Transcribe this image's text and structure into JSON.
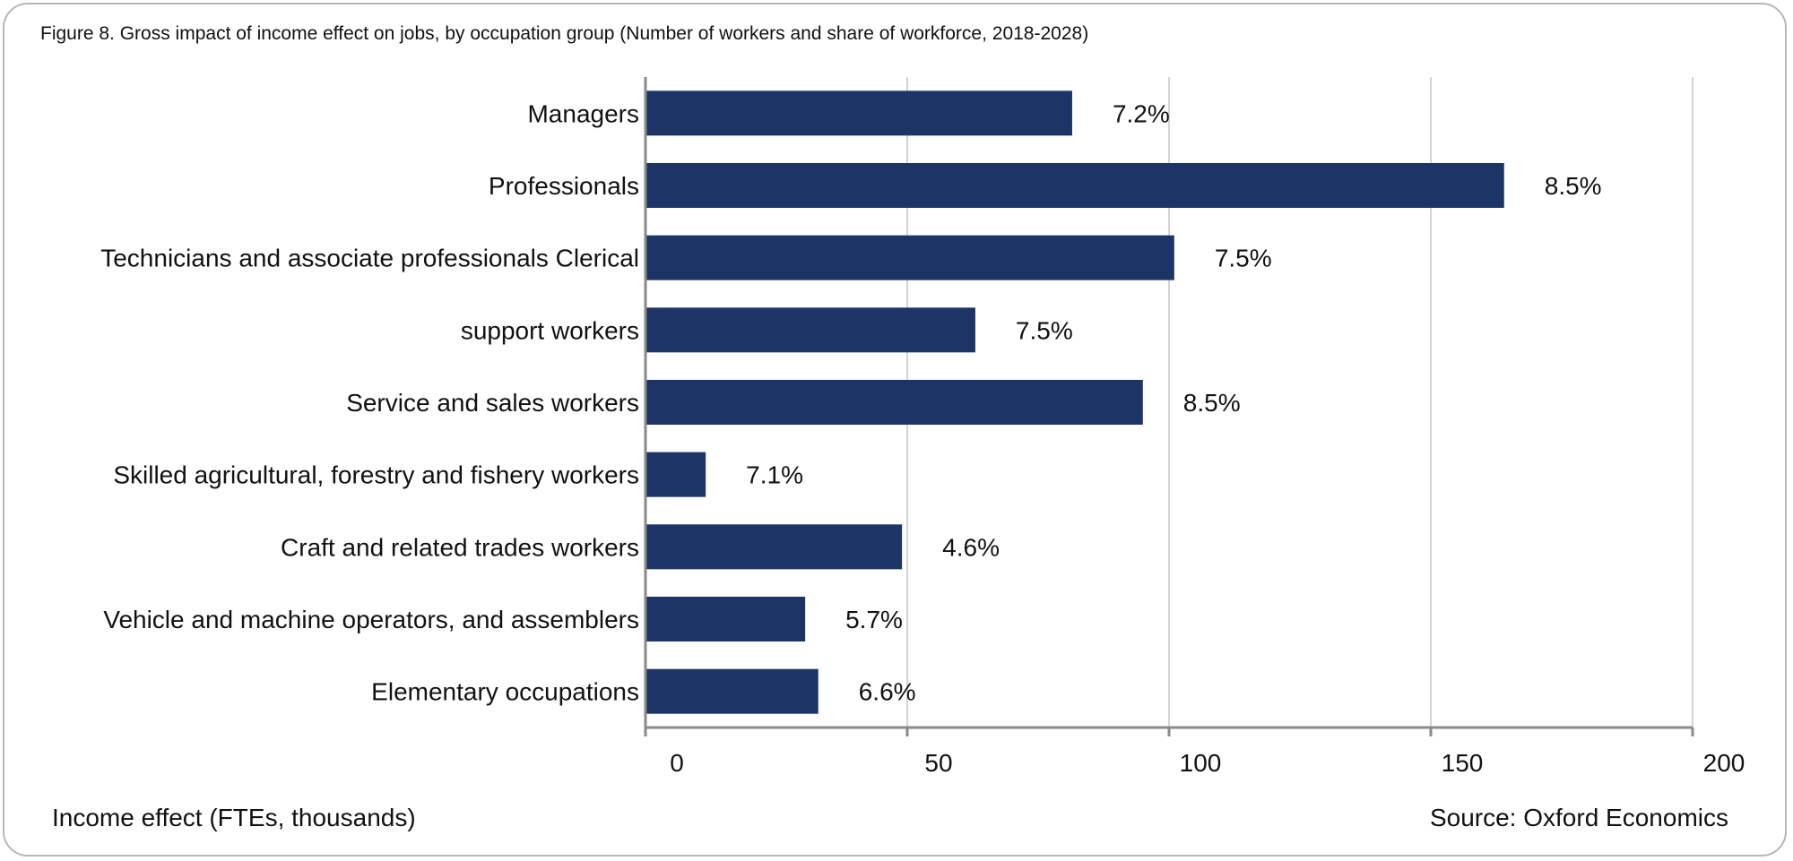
{
  "title": "Figure 8. Gross impact of income effect on jobs, by occupation group (Number of workers and share of workforce, 2018-2028)",
  "xlabel": "Income effect (FTEs, thousands)",
  "source": "Source: Oxford Economics",
  "colors": {
    "bar": "#1c3566",
    "grid": "#d4d4d4",
    "axis": "#8a8a8a"
  },
  "chart_data": {
    "type": "bar",
    "orientation": "horizontal",
    "categories": [
      "Managers",
      "Professionals",
      "Technicians and associate professionals Clerical",
      "support workers",
      "Service and sales workers",
      "Skilled agricultural, forestry and fishery workers",
      "Craft and related trades workers",
      "Vehicle and machine operators, and assemblers",
      "Elementary occupations"
    ],
    "values": [
      81.5,
      164,
      101,
      63,
      95,
      11.5,
      49,
      30.5,
      33
    ],
    "data_labels": [
      "7.2%",
      "8.5%",
      "7.5%",
      "7.5%",
      "8.5%",
      "7.1%",
      "4.6%",
      "5.7%",
      "6.6%"
    ],
    "xlim": [
      0,
      200
    ],
    "xticks": [
      0,
      50,
      100,
      150,
      200
    ],
    "xtick_labels": [
      "0",
      "50",
      "100",
      "150",
      "200"
    ],
    "grid": "vertical",
    "legend": "none"
  }
}
